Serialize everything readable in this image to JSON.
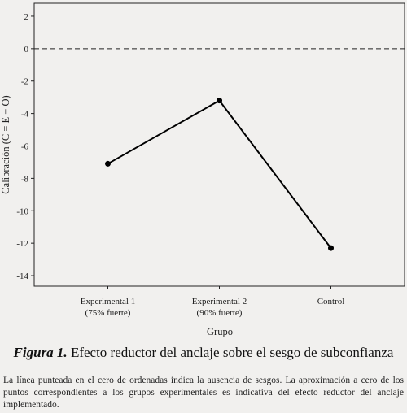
{
  "chart_data": {
    "type": "line",
    "categories": [
      "Experimental 1\n(75% fuerte)",
      "Experimental 2\n(90% fuerte)",
      "Control"
    ],
    "values": [
      -7.1,
      -3.2,
      -12.3
    ],
    "color": "#000000",
    "ylim": [
      -14.65,
      2.8
    ],
    "yticks": [
      2,
      0,
      -2,
      -4,
      -6,
      -8,
      -10,
      -12,
      -14
    ],
    "reference_line": 0,
    "x_label": "Grupo",
    "y_label": "Calibración (C = E − O)"
  },
  "caption": {
    "label": "Figura 1.",
    "title": "Efecto reductor del anclaje sobre el sesgo de subconfianza",
    "note": "La línea punteada en el cero de ordenadas indica la ausencia de sesgos. La aproximación a cero de los puntos correspondientes a los grupos experimentales es indicativa del efecto reductor del anclaje implementado."
  }
}
